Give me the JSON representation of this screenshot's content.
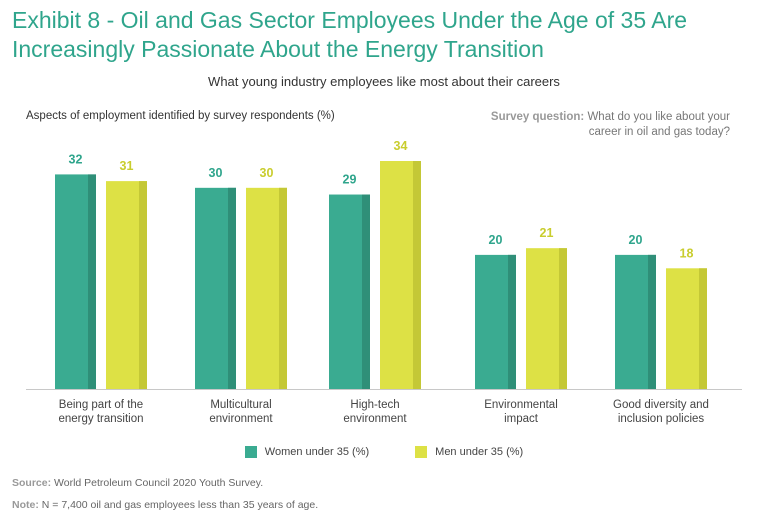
{
  "title": "Exhibit 8 - Oil and Gas Sector Employees Under the Age of 35 Are Increasingly Passionate About the Energy Transition",
  "subtitle": "What young industry employees like most about their careers",
  "survey_question": {
    "label": "Survey question:",
    "text": "What do you like about your career in oil and gas today?"
  },
  "footnotes": {
    "source_label": "Source:",
    "source_text": "World Petroleum Council 2020 Youth Survey.",
    "note_label": "Note:",
    "note_text": "N = 7,400 oil and gas employees less than 35 years of age."
  },
  "chart_data": {
    "type": "bar",
    "title": "What young industry employees like most about their careers",
    "ylabel": "Aspects of employment identified by survey respondents (%)",
    "xlabel": "",
    "ylim": [
      0,
      34
    ],
    "grid": false,
    "legend_position": "bottom",
    "categories": [
      [
        "Being part of the",
        "energy transition"
      ],
      [
        "Multicultural",
        "environment"
      ],
      [
        "High-tech",
        "environment"
      ],
      [
        "Environmental",
        "impact"
      ],
      [
        "Good diversity and",
        "inclusion policies"
      ]
    ],
    "series": [
      {
        "name": "Women under 35 (%)",
        "color": "#3aab91",
        "shade": "#2f8f78",
        "label_color": "#2fa58c",
        "values": [
          32,
          30,
          29,
          20,
          20
        ]
      },
      {
        "name": "Men under 35 (%)",
        "color": "#dde145",
        "shade": "#c4c836",
        "label_color": "#c9cd2e",
        "values": [
          31,
          30,
          34,
          21,
          18
        ]
      }
    ]
  }
}
